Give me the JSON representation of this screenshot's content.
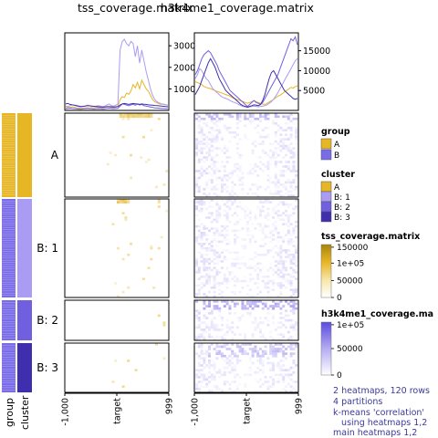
{
  "chart_data": {
    "type": "heatmap",
    "titles": [
      "tss_coverage.matrix",
      "h3k4me1_coverage.matrix"
    ],
    "x_ticks": [
      "-1,000",
      "target",
      "999"
    ],
    "profiles": [
      {
        "matrix": "tss_coverage.matrix",
        "y_ticks": [
          1000,
          2000,
          3000
        ],
        "ylim": [
          0,
          3600
        ],
        "series": [
          {
            "cluster": "A",
            "color": "#E7B625",
            "values": [
              120,
              150,
              140,
              160,
              150,
              120,
              110,
              90,
              100,
              110,
              120,
              110,
              130,
              120,
              150,
              140,
              130,
              120,
              140,
              200,
              160,
              140,
              130,
              150,
              200,
              500,
              650,
              600,
              800,
              750,
              900,
              1200,
              1050,
              1300,
              1000,
              1400,
              1200,
              1000,
              900,
              700,
              500,
              400,
              350,
              300,
              280,
              300,
              260,
              240
            ]
          },
          {
            "cluster": "B: 1",
            "color": "#A99CF2",
            "values": [
              200,
              180,
              220,
              260,
              240,
              200,
              180,
              160,
              190,
              200,
              240,
              220,
              200,
              180,
              200,
              220,
              200,
              180,
              200,
              260,
              300,
              220,
              200,
              240,
              300,
              2800,
              3200,
              3300,
              3100,
              3000,
              3200,
              3100,
              2500,
              3000,
              2200,
              2800,
              2300,
              1800,
              1400,
              1000,
              700,
              500,
              400,
              350,
              300,
              280,
              260,
              250
            ]
          },
          {
            "cluster": "B: 2",
            "color": "#7060E0",
            "values": [
              80,
              90,
              100,
              90,
              80,
              70,
              60,
              60,
              70,
              80,
              90,
              80,
              70,
              60,
              70,
              80,
              70,
              60,
              70,
              90,
              100,
              90,
              80,
              90,
              100,
              200,
              300,
              280,
              250,
              220,
              260,
              280,
              240,
              300,
              250,
              280,
              220,
              200,
              180,
              160,
              140,
              120,
              110,
              100,
              90,
              90,
              80,
              80
            ]
          },
          {
            "cluster": "B: 3",
            "color": "#3F2FAE",
            "values": [
              300,
              320,
              280,
              260,
              240,
              220,
              200,
              180,
              190,
              200,
              220,
              210,
              200,
              190,
              180,
              170,
              160,
              150,
              160,
              170,
              180,
              170,
              160,
              170,
              180,
              250,
              300,
              320,
              300,
              280,
              300,
              320,
              310,
              300,
              280,
              300,
              290,
              280,
              260,
              250,
              240,
              230,
              220,
              210,
              200,
              190,
              180,
              170
            ]
          }
        ]
      },
      {
        "matrix": "h3k4me1_coverage.matrix",
        "y_ticks": [
          5000,
          10000,
          15000
        ],
        "ylim": [
          0,
          19500
        ],
        "series": [
          {
            "cluster": "A",
            "color": "#E7B625",
            "values": [
              7200,
              7000,
              6800,
              6500,
              6000,
              5800,
              5600,
              5500,
              5200,
              5000,
              4800,
              4600,
              4400,
              4200,
              4000,
              3800,
              3600,
              3200,
              3000,
              2800,
              2600,
              2400,
              2200,
              2000,
              1800,
              2000,
              2200,
              2400,
              2200,
              2000,
              1800,
              1600,
              1500,
              1800,
              2100,
              2400,
              2800,
              3200,
              3600,
              3800,
              4200,
              4600,
              5000,
              5400,
              5800,
              5600,
              6000,
              6200
            ]
          },
          {
            "cluster": "B: 1",
            "color": "#A99CF2",
            "values": [
              8000,
              9000,
              10500,
              10000,
              9000,
              8000,
              7500,
              6500,
              5500,
              5000,
              4500,
              4000,
              3500,
              3200,
              3000,
              2800,
              2500,
              2200,
              2000,
              1800,
              1500,
              1200,
              1000,
              900,
              800,
              900,
              1000,
              1100,
              1000,
              900,
              1000,
              1100,
              1200,
              1400,
              1800,
              2200,
              2800,
              3600,
              4500,
              5500,
              6500,
              7500,
              8500,
              9500,
              10500,
              11500,
              12500,
              13000
            ]
          },
          {
            "cluster": "B: 2",
            "color": "#7060E0",
            "values": [
              9000,
              10000,
              11500,
              13000,
              14000,
              14500,
              15000,
              14500,
              13500,
              12500,
              11500,
              10000,
              9000,
              8000,
              7000,
              6000,
              5000,
              4500,
              4000,
              3500,
              3000,
              2500,
              2000,
              1500,
              1000,
              1500,
              2000,
              2500,
              2000,
              1800,
              1500,
              2000,
              3000,
              4000,
              5000,
              6000,
              7000,
              8000,
              9000,
              10500,
              12000,
              13500,
              15000,
              16500,
              18000,
              17500,
              18500,
              16500
            ]
          },
          {
            "cluster": "B: 3",
            "color": "#3F2FAE",
            "values": [
              4000,
              5000,
              6000,
              7500,
              9000,
              10500,
              12000,
              13000,
              12000,
              11000,
              9500,
              8000,
              7000,
              6000,
              5000,
              4500,
              4000,
              3500,
              3000,
              2500,
              2000,
              1500,
              1200,
              1000,
              800,
              1000,
              1200,
              1400,
              1300,
              1200,
              1500,
              2500,
              4000,
              6000,
              8000,
              9500,
              10000,
              9000,
              8000,
              7000,
              6000,
              5000,
              4500,
              4000,
              3500,
              3000,
              2800,
              3000
            ]
          }
        ]
      }
    ],
    "clusters": [
      {
        "label": "A",
        "rows": 37
      },
      {
        "label": "B: 1",
        "rows": 45
      },
      {
        "label": "B: 2",
        "rows": 17
      },
      {
        "label": "B: 3",
        "rows": 21
      }
    ],
    "annotation_labels": [
      "group",
      "cluster"
    ],
    "legends": {
      "group": {
        "title": "group",
        "items": [
          {
            "label": "A",
            "color": "#E7B625"
          },
          {
            "label": "B",
            "color": "#7A6BE8"
          }
        ]
      },
      "cluster": {
        "title": "cluster",
        "items": [
          {
            "label": "A",
            "color": "#E7B625"
          },
          {
            "label": "B: 1",
            "color": "#A99CF2"
          },
          {
            "label": "B: 2",
            "color": "#7060E0"
          },
          {
            "label": "B: 3",
            "color": "#3F2FAE"
          }
        ]
      },
      "tss": {
        "title": "tss_coverage.matrix",
        "ticks": [
          "150000",
          "1e+05",
          "50000",
          "0"
        ],
        "colors": [
          "#A8850E",
          "#E7B625",
          "#F7E6A8",
          "#ffffff"
        ]
      },
      "h3k4me1": {
        "title": "h3k4me1_coverage.ma",
        "ticks": [
          "1e+05",
          "50000",
          "0"
        ],
        "colors": [
          "#5B4BE0",
          "#B5ACF2",
          "#ffffff"
        ]
      }
    },
    "info": [
      "2 heatmaps, 120 rows",
      "4 partitions",
      "k-means 'correlation'",
      "   using heatmaps 1,2",
      "main heatmaps 1,2"
    ]
  }
}
